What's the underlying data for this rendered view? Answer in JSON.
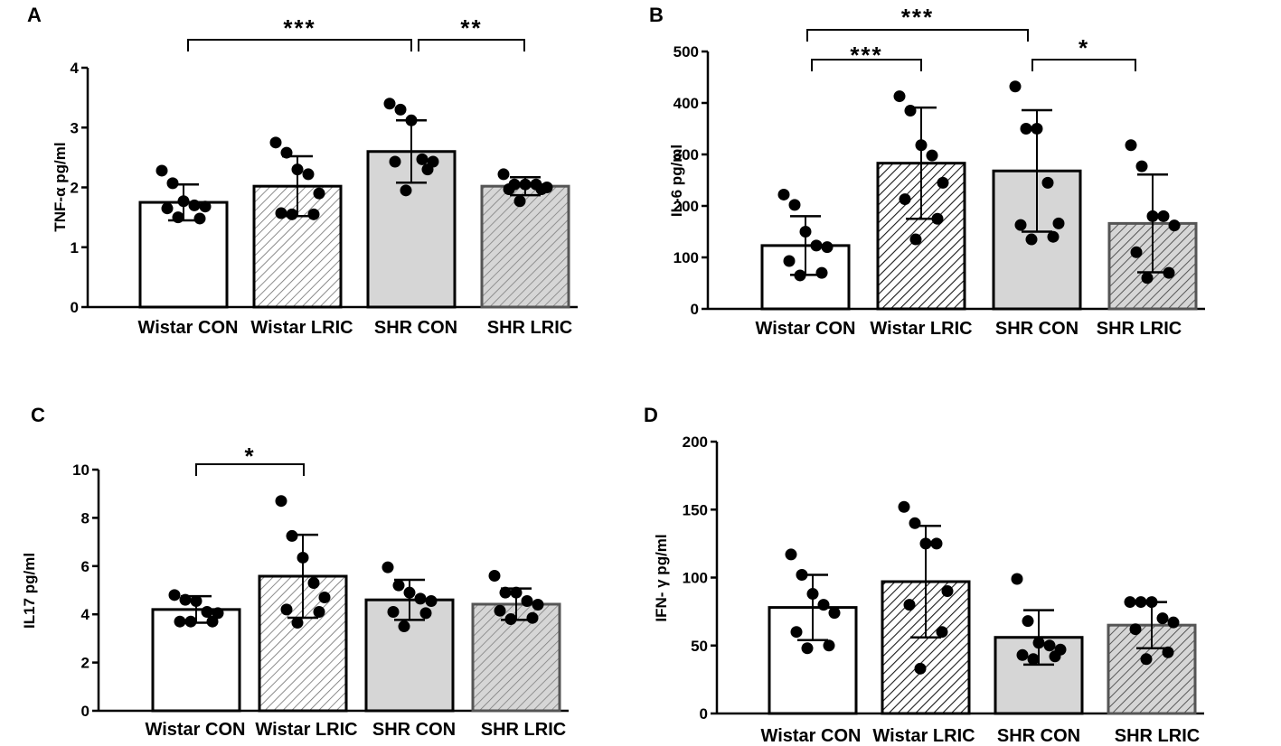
{
  "figure": {
    "panel_ids": [
      "A",
      "B",
      "C",
      "D"
    ]
  },
  "chart_data": [
    {
      "panel": "A",
      "type": "bar",
      "title": "",
      "xlabel": "",
      "ylabel": "TNF-α pg/ml",
      "ylim": [
        0,
        4
      ],
      "yticks": [
        0,
        1,
        2,
        3,
        4
      ],
      "categories": [
        "Wistar CON",
        "Wistar LRIC",
        "SHR CON",
        "SHR LRIC"
      ],
      "means": [
        1.75,
        2.02,
        2.6,
        2.02
      ],
      "sd": [
        0.3,
        0.5,
        0.52,
        0.15
      ],
      "points": [
        [
          2.28,
          2.07,
          1.77,
          1.7,
          1.68,
          1.65,
          1.48,
          1.5
        ],
        [
          2.75,
          2.58,
          2.3,
          2.22,
          1.9,
          1.57,
          1.55,
          1.55
        ],
        [
          3.4,
          3.3,
          3.12,
          2.47,
          2.43,
          2.43,
          2.3,
          1.95
        ],
        [
          2.22,
          2.05,
          2.05,
          2.05,
          2.0,
          1.97,
          1.97,
          1.77
        ]
      ],
      "significance": [
        {
          "from": 0,
          "to": 2,
          "label": "***"
        },
        {
          "from": 2,
          "to": 3,
          "label": "**"
        }
      ]
    },
    {
      "panel": "B",
      "type": "bar",
      "title": "",
      "xlabel": "",
      "ylabel": "IL-6 pg/ml",
      "ylim": [
        0,
        500
      ],
      "yticks": [
        0,
        100,
        200,
        300,
        400,
        500
      ],
      "categories": [
        "Wistar CON",
        "Wistar LRIC",
        "SHR CON",
        "SHR LRIC"
      ],
      "means": [
        123,
        283,
        268,
        166
      ],
      "sd": [
        57,
        108,
        118,
        95
      ],
      "points": [
        [
          222,
          202,
          150,
          123,
          120,
          93,
          70,
          65
        ],
        [
          413,
          385,
          318,
          298,
          245,
          213,
          175,
          135
        ],
        [
          432,
          350,
          350,
          245,
          166,
          163,
          140,
          135
        ],
        [
          318,
          277,
          180,
          180,
          162,
          110,
          70,
          60
        ]
      ],
      "significance": [
        {
          "from": 0,
          "to": 2,
          "label": "***"
        },
        {
          "from": 0,
          "to": 1,
          "label": "***"
        },
        {
          "from": 2,
          "to": 3,
          "label": "*"
        }
      ]
    },
    {
      "panel": "C",
      "type": "bar",
      "title": "",
      "xlabel": "",
      "ylabel": "IL17 pg/ml",
      "ylim": [
        0,
        10
      ],
      "yticks": [
        0,
        2,
        4,
        6,
        8,
        10
      ],
      "categories": [
        "Wistar CON",
        "Wistar LRIC",
        "SHR CON",
        "SHR LRIC"
      ],
      "means": [
        4.2,
        5.58,
        4.6,
        4.42
      ],
      "sd": [
        0.55,
        1.72,
        0.83,
        0.65
      ],
      "points": [
        [
          4.8,
          4.6,
          4.55,
          4.1,
          4.05,
          3.7,
          3.7,
          3.7
        ],
        [
          8.7,
          7.25,
          6.35,
          5.3,
          4.7,
          4.2,
          4.1,
          3.65
        ],
        [
          5.95,
          5.2,
          4.9,
          4.65,
          4.55,
          4.1,
          4.05,
          3.5
        ],
        [
          5.6,
          4.9,
          4.9,
          4.55,
          4.4,
          4.15,
          3.85,
          3.8
        ]
      ],
      "significance": [
        {
          "from": 0,
          "to": 1,
          "label": "*"
        }
      ]
    },
    {
      "panel": "D",
      "type": "bar",
      "title": "",
      "xlabel": "",
      "ylabel": "IFN- γ pg/ml",
      "ylim": [
        0,
        200
      ],
      "yticks": [
        0,
        50,
        100,
        150,
        200
      ],
      "categories": [
        "Wistar CON",
        "Wistar LRIC",
        "SHR CON",
        "SHR LRIC"
      ],
      "means": [
        78,
        97,
        56,
        65
      ],
      "sd": [
        24,
        41,
        20,
        17
      ],
      "points": [
        [
          117,
          102,
          88,
          80,
          74,
          60,
          50,
          48
        ],
        [
          152,
          140,
          125,
          125,
          90,
          80,
          60,
          33
        ],
        [
          99,
          68,
          52,
          50,
          47,
          43,
          42,
          40
        ],
        [
          82,
          82,
          82,
          70,
          67,
          62,
          45,
          40
        ]
      ],
      "significance": []
    }
  ]
}
